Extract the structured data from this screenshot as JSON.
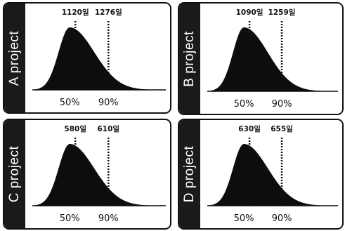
{
  "chart_data": [
    {
      "type": "area",
      "project_label": "A  project",
      "percentile_labels": [
        "50%",
        "90%"
      ],
      "day_labels": [
        "1120일",
        "1276일"
      ],
      "days": [
        1120,
        1276
      ]
    },
    {
      "type": "area",
      "project_label": "B  project",
      "percentile_labels": [
        "50%",
        "90%"
      ],
      "day_labels": [
        "1090일",
        "1259일"
      ],
      "days": [
        1090,
        1259
      ]
    },
    {
      "type": "area",
      "project_label": "C  project",
      "percentile_labels": [
        "50%",
        "90%"
      ],
      "day_labels": [
        "580일",
        "610일"
      ],
      "days": [
        580,
        610
      ]
    },
    {
      "type": "area",
      "project_label": "D  project",
      "percentile_labels": [
        "50%",
        "90%"
      ],
      "day_labels": [
        "630일",
        "655일"
      ],
      "days": [
        630,
        655
      ]
    }
  ],
  "colors": {
    "fill": "#0d0d0d",
    "sidebar": "#1a1a1a",
    "border": "#111111"
  }
}
